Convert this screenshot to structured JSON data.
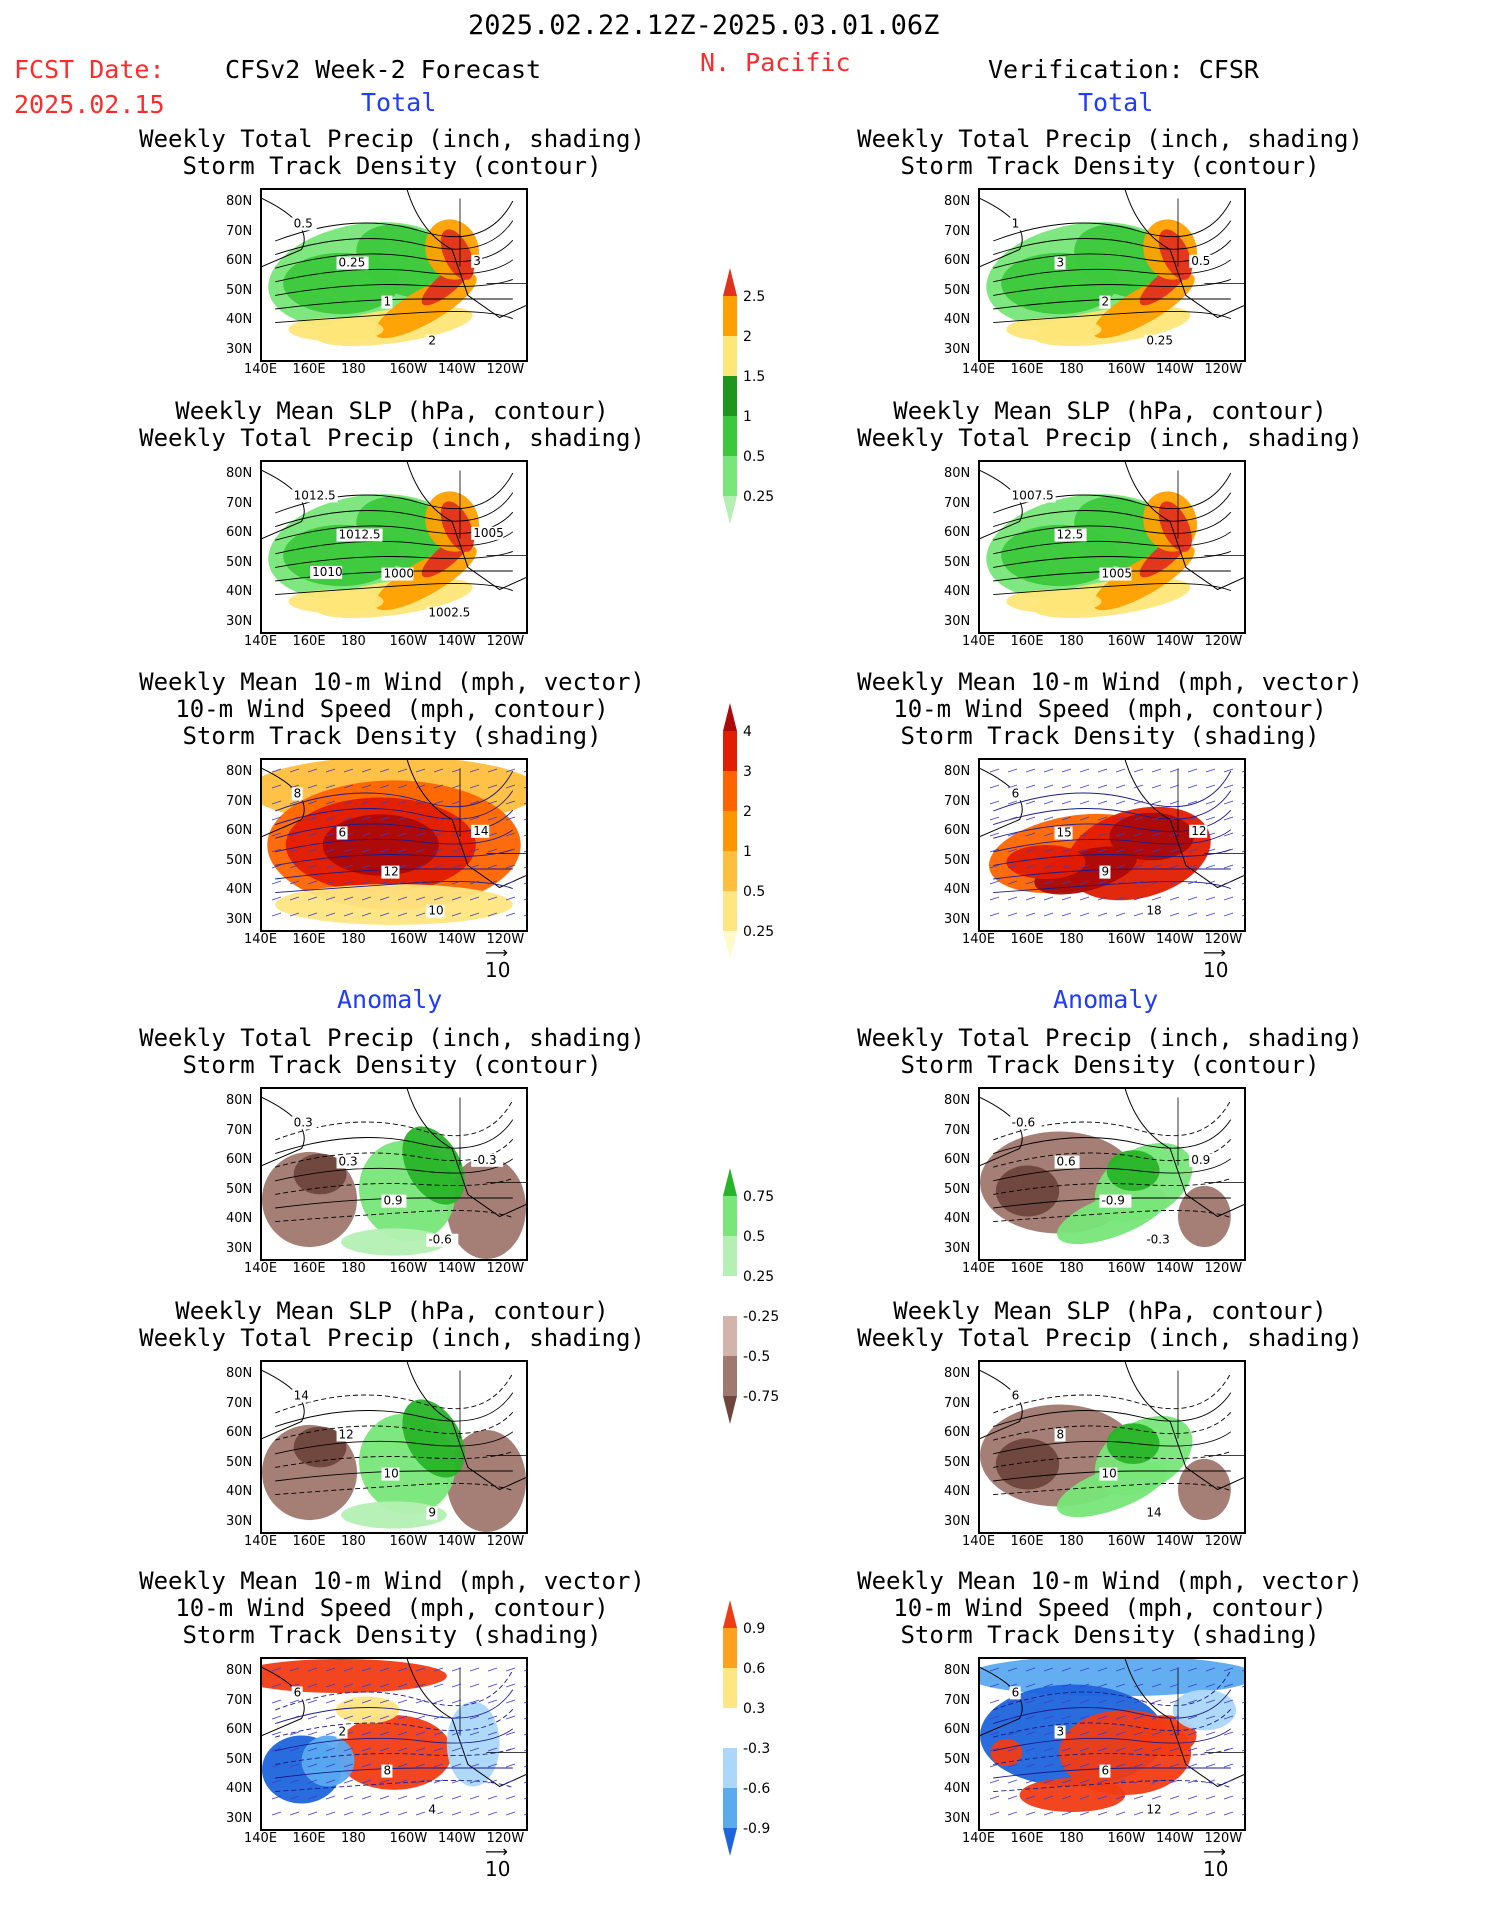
{
  "header": {
    "period": "2025.02.22.12Z-2025.03.01.06Z",
    "fcst_label": "FCST Date:",
    "fcst_date": "2025.02.15",
    "model": "CFSv2 Week-2 Forecast",
    "region": "N. Pacific",
    "verification": "Verification: CFSR"
  },
  "sections": {
    "total": "Total",
    "anomaly": "Anomaly"
  },
  "panel_titles": {
    "precip_storm": [
      "Weekly Total Precip (inch, shading)",
      "Storm Track Density (contour)"
    ],
    "slp_precip": [
      "Weekly Mean SLP (hPa, contour)",
      "Weekly Total Precip (inch, shading)"
    ],
    "wind_storm": [
      "Weekly Mean 10-m Wind (mph, vector)",
      "10-m Wind Speed (mph, contour)",
      "Storm Track Density (shading)"
    ]
  },
  "axes": {
    "lat_labels": [
      "80N",
      "70N",
      "60N",
      "50N",
      "40N",
      "30N"
    ],
    "lon_labels": [
      "140E",
      "160E",
      "180",
      "160W",
      "140W",
      "120W"
    ]
  },
  "vector_scale": "10",
  "colorbars": {
    "precip_total": {
      "levels": [
        "0.25",
        "0.5",
        "1",
        "1.5",
        "2",
        "2.5"
      ],
      "colors": [
        "#b4f0b4",
        "#78e678",
        "#3cc83c",
        "#1e961e",
        "#ffe678",
        "#ffa000",
        "#e1321e"
      ]
    },
    "storm_total": {
      "levels": [
        "0.25",
        "0.5",
        "1",
        "2",
        "3",
        "4"
      ],
      "colors": [
        "#fffac8",
        "#ffe682",
        "#ffbe3c",
        "#ff9600",
        "#ff6400",
        "#e11e00",
        "#aa0a0a"
      ]
    },
    "precip_anom": {
      "levels": [
        "-0.75",
        "-0.5",
        "-0.25",
        "0.25",
        "0.5",
        "0.75"
      ],
      "colors": [
        "#6e463c",
        "#a0786e",
        "#d2b4aa",
        "#ffffff",
        "#b4f0b4",
        "#78e678",
        "#28b428"
      ]
    },
    "storm_anom": {
      "levels": [
        "-0.9",
        "-0.6",
        "-0.3",
        "0.3",
        "0.6",
        "0.9"
      ],
      "colors": [
        "#1e64dc",
        "#5aaaf0",
        "#aad7fa",
        "#ffffff",
        "#ffe682",
        "#ffa01e",
        "#f03c14"
      ]
    }
  },
  "chart_data": [
    {
      "type": "heatmap",
      "panel": "forecast-total-precip-storm-track",
      "contour_labels": [
        "0.5",
        "0.25",
        "1",
        "2",
        "3"
      ]
    },
    {
      "type": "heatmap",
      "panel": "forecast-total-slp-precip",
      "contour_labels": [
        "1012.5",
        "1012.5",
        "1000",
        "1002.5",
        "1005",
        "1010"
      ]
    },
    {
      "type": "heatmap",
      "panel": "forecast-total-wind-storm-track",
      "contour_labels": [
        "8",
        "6",
        "12",
        "10",
        "14"
      ]
    },
    {
      "type": "heatmap",
      "panel": "forecast-anomaly-precip-storm-track",
      "contour_labels": [
        "0.3",
        "0.3",
        "0.9",
        "-0.6",
        "-0.3"
      ]
    },
    {
      "type": "heatmap",
      "panel": "forecast-anomaly-slp-precip",
      "contour_labels": [
        "14",
        "12",
        "10",
        "9"
      ]
    },
    {
      "type": "heatmap",
      "panel": "forecast-anomaly-wind-storm-track",
      "contour_labels": [
        "6",
        "2",
        "8",
        "4"
      ]
    },
    {
      "type": "heatmap",
      "panel": "cfsr-total-precip-storm-track",
      "contour_labels": [
        "1",
        "3",
        "2",
        "0.25",
        "0.5"
      ]
    },
    {
      "type": "heatmap",
      "panel": "cfsr-total-slp-precip",
      "contour_labels": [
        "1007.5",
        "12.5",
        "1005"
      ]
    },
    {
      "type": "heatmap",
      "panel": "cfsr-total-wind-storm-track",
      "contour_labels": [
        "6",
        "15",
        "9",
        "18",
        "12"
      ]
    },
    {
      "type": "heatmap",
      "panel": "cfsr-anomaly-precip-storm-track",
      "contour_labels": [
        "-0.6",
        "0.6",
        "-0.9",
        "-0.3",
        "0.9"
      ]
    },
    {
      "type": "heatmap",
      "panel": "cfsr-anomaly-slp-precip",
      "contour_labels": [
        "6",
        "8",
        "10",
        "14"
      ]
    },
    {
      "type": "heatmap",
      "panel": "cfsr-anomaly-wind-storm-track",
      "contour_labels": [
        "6",
        "3",
        "6",
        "12"
      ]
    }
  ]
}
